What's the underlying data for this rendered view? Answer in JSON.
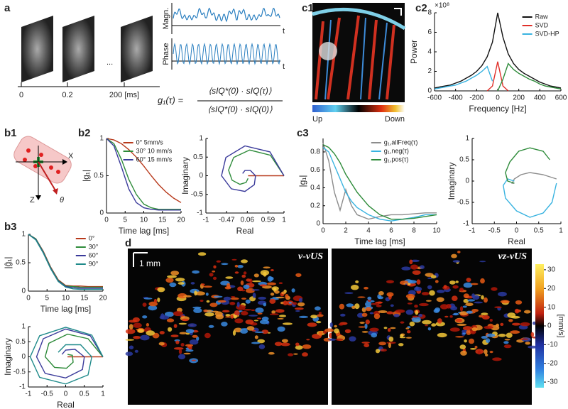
{
  "panels": {
    "a": {
      "label": "a",
      "magn": "Magn.",
      "phase": "Phase",
      "t1": "t",
      "t2": "t",
      "ellipsis": "...",
      "time_ticks": [
        "0",
        "0.2",
        "200 [ms]"
      ],
      "formula": {
        "lhs": "g₁(τ) =",
        "numerator": "⟨sIQ*(0) · sIQ(τ)⟩",
        "denominator": "⟨sIQ*(0) · sIQ(0)⟩"
      }
    },
    "c1": {
      "label": "c1",
      "low": "Up",
      "high": "Down"
    },
    "c2": {
      "label": "c2"
    },
    "b1": {
      "label": "b1",
      "x_axis": "X",
      "z_axis": "Z",
      "angle": "θ"
    },
    "b2": {
      "label": "b2"
    },
    "c3": {
      "label": "c3"
    },
    "b3": {
      "label": "b3"
    },
    "d": {
      "label": "d",
      "scale": "1 mm",
      "left_title": "v-vUS",
      "right_title": "vz-vUS",
      "colorbar": {
        "label": "[mm/s]",
        "lim": [
          -33,
          33
        ],
        "ticks": [
          30,
          20,
          10,
          0,
          -10,
          -20,
          -30
        ]
      }
    }
  },
  "chart_data": [
    {
      "type": "line",
      "xlabel": "Frequency [Hz]",
      "ylabel": "Power",
      "y_multiplier": "×10⁸",
      "xlim": [
        -600,
        600
      ],
      "ylim": [
        0,
        8
      ],
      "xticks": [
        -600,
        -400,
        -200,
        0,
        200,
        400,
        600
      ],
      "yticks": [
        0,
        2,
        4,
        6,
        8
      ],
      "legend": "upper right",
      "x": [
        -600,
        -550,
        -500,
        -450,
        -400,
        -350,
        -300,
        -250,
        -200,
        -150,
        -100,
        -50,
        0,
        50,
        100,
        150,
        200,
        250,
        300,
        350,
        400,
        450,
        500,
        550,
        600
      ],
      "series": [
        {
          "name": "Raw",
          "color": "#111111",
          "values": [
            0.3,
            0.4,
            0.5,
            0.6,
            0.8,
            1.0,
            1.3,
            1.6,
            2.0,
            2.6,
            3.5,
            5.0,
            8.0,
            5.5,
            3.8,
            2.8,
            2.2,
            1.8,
            1.5,
            1.2,
            0.9,
            0.7,
            0.5,
            0.4,
            0.3
          ]
        },
        {
          "name": "SVD",
          "color": "#e0302a",
          "x": [
            -100,
            -50,
            0,
            50,
            100
          ],
          "values": [
            0,
            0.5,
            3,
            0.5,
            0
          ]
        },
        {
          "name": "SVD-HP",
          "color": "#39b3e0",
          "colors": [
            "#39b3e0",
            "#2e8b3a"
          ],
          "values": [
            0.2,
            0.3,
            0.4,
            0.5,
            0.6,
            0.8,
            1.0,
            1.3,
            1.6,
            2.0,
            2.5,
            1.0,
            0,
            1.2,
            2.8,
            2.2,
            1.8,
            1.5,
            1.2,
            1.0,
            0.7,
            0.5,
            0.4,
            0.3,
            0.2
          ]
        }
      ]
    },
    {
      "type": "line",
      "xlabel": "Time lag [ms]",
      "ylabel": "|g₁|",
      "xlim": [
        0,
        20
      ],
      "ylim": [
        0,
        1
      ],
      "xticks": [
        0,
        5,
        10,
        15,
        20
      ],
      "yticks": [
        0,
        0.5,
        1
      ],
      "legend": "upper right",
      "x": [
        0,
        2,
        4,
        6,
        8,
        10,
        12,
        14,
        16,
        18,
        20
      ],
      "series": [
        {
          "name": "0° 5mm/s",
          "color": "#b83a1c",
          "values": [
            1,
            0.98,
            0.93,
            0.85,
            0.75,
            0.63,
            0.5,
            0.38,
            0.28,
            0.2,
            0.14
          ]
        },
        {
          "name": "30° 10 mm/s",
          "color": "#2e8b3a",
          "values": [
            1,
            0.93,
            0.72,
            0.45,
            0.25,
            0.12,
            0.07,
            0.05,
            0.05,
            0.05,
            0.05
          ]
        },
        {
          "name": "60° 15 mm/s",
          "color": "#3a3a9a",
          "values": [
            1,
            0.9,
            0.62,
            0.32,
            0.14,
            0.07,
            0.05,
            0.04,
            0.04,
            0.04,
            0.04
          ]
        }
      ]
    },
    {
      "type": "line",
      "xlabel": "Real",
      "ylabel": "Imaginary",
      "xlim": [
        -1,
        1
      ],
      "ylim": [
        -1,
        1
      ],
      "xticks": [
        -1,
        -0.47,
        0.06,
        0.59,
        1
      ],
      "yticks": [
        -1,
        -0.5,
        0,
        0.5,
        1
      ],
      "series": [
        {
          "color": "#b83a1c",
          "x": [
            1,
            0.8,
            0.5,
            0.3,
            0.15,
            0.08
          ],
          "values": [
            0,
            0,
            0,
            0,
            0,
            0
          ]
        },
        {
          "color": "#2e8b3a",
          "x": [
            1,
            0.65,
            0.12,
            -0.29,
            -0.42,
            -0.33,
            -0.13,
            0.03,
            0.08
          ],
          "values": [
            0,
            0.55,
            0.69,
            0.49,
            0.15,
            -0.12,
            -0.23,
            -0.18,
            -0.07
          ]
        },
        {
          "color": "#3a3a9a",
          "x": [
            1,
            0.64,
            0,
            -0.49,
            -0.6,
            -0.35,
            0,
            0.24,
            0.27,
            0.14,
            0,
            -0.06
          ],
          "values": [
            0,
            0.64,
            0.8,
            0.49,
            0,
            -0.35,
            -0.42,
            -0.24,
            0,
            0.14,
            0.14,
            0.06
          ]
        }
      ]
    },
    {
      "type": "line",
      "xlabel": "Time lag [ms]",
      "ylabel": "|g₁|",
      "xlim": [
        0,
        10
      ],
      "ylim": [
        0,
        0.95
      ],
      "xticks": [
        0,
        2,
        4,
        6,
        8,
        10
      ],
      "yticks": [
        0,
        0.2,
        0.4,
        0.6,
        0.8
      ],
      "legend": "upper right",
      "x": [
        0,
        0.5,
        1,
        1.5,
        2,
        2.5,
        3,
        4,
        5,
        6,
        7,
        8,
        9,
        10
      ],
      "series": [
        {
          "name": "g₁,allFreq(τ)",
          "color": "#8c8c8c",
          "values": [
            0.9,
            0.7,
            0.35,
            0.15,
            0.38,
            0.2,
            0.1,
            0.05,
            0.08,
            0.1,
            0.1,
            0.11,
            0.12,
            0.12
          ]
        },
        {
          "name": "g₁,neg(τ)",
          "color": "#39b3e0",
          "values": [
            0.85,
            0.8,
            0.65,
            0.5,
            0.35,
            0.25,
            0.18,
            0.1,
            0.05,
            0.03,
            0.05,
            0.07,
            0.1,
            0.1
          ]
        },
        {
          "name": "g₁,pos(τ)",
          "color": "#2e8b3a",
          "values": [
            0.88,
            0.85,
            0.78,
            0.68,
            0.55,
            0.45,
            0.35,
            0.2,
            0.1,
            0.05,
            0.05,
            0.06,
            0.08,
            0.1
          ]
        }
      ]
    },
    {
      "type": "line",
      "xlabel": "Real",
      "ylabel": "Imaginary",
      "xlim": [
        -1,
        1
      ],
      "ylim": [
        -1,
        1
      ],
      "xticks": [
        -1,
        -0.5,
        0,
        0.5,
        1
      ],
      "yticks": [
        -1,
        -0.5,
        0,
        0.5,
        1
      ],
      "series": [
        {
          "color": "#8c8c8c",
          "x": [
            0.9,
            0.6,
            0.3,
            0.1,
            -0.05,
            -0.1,
            -0.05
          ],
          "values": [
            0.05,
            0.15,
            0.2,
            0.15,
            0.05,
            -0.05,
            -0.05
          ]
        },
        {
          "color": "#39b3e0",
          "x": [
            0.9,
            0.8,
            0.6,
            0.3,
            0.0,
            -0.25,
            -0.3,
            -0.2,
            -0.05
          ],
          "values": [
            -0.05,
            -0.5,
            -0.75,
            -0.85,
            -0.7,
            -0.4,
            -0.1,
            0.05,
            0
          ]
        },
        {
          "color": "#2e8b3a",
          "x": [
            0.75,
            0.6,
            0.3,
            0.05,
            -0.15,
            -0.25,
            -0.2,
            -0.05
          ],
          "values": [
            0.5,
            0.7,
            0.78,
            0.7,
            0.45,
            0.2,
            0.0,
            -0.05
          ]
        }
      ]
    },
    {
      "type": "line",
      "xlabel": "Time lag [ms]",
      "ylabel": "|ĝ₁|",
      "xlim": [
        0,
        20
      ],
      "ylim": [
        0,
        1
      ],
      "xticks": [
        0,
        5,
        10,
        15,
        20
      ],
      "yticks": [
        0,
        0.5,
        1
      ],
      "legend": "upper right",
      "x": [
        0,
        2,
        4,
        6,
        8,
        10,
        12,
        14,
        16,
        18,
        20
      ],
      "series": [
        {
          "name": "0°",
          "color": "#b83a1c",
          "values": [
            1,
            0.92,
            0.7,
            0.42,
            0.2,
            0.1,
            0.09,
            0.09,
            0.08,
            0.08,
            0.08
          ]
        },
        {
          "name": "30°",
          "color": "#2e8b3a",
          "values": [
            1,
            0.92,
            0.69,
            0.41,
            0.19,
            0.09,
            0.08,
            0.07,
            0.07,
            0.07,
            0.07
          ]
        },
        {
          "name": "60°",
          "color": "#3a3a9a",
          "values": [
            1,
            0.91,
            0.68,
            0.4,
            0.18,
            0.08,
            0.06,
            0.05,
            0.05,
            0.05,
            0.05
          ]
        },
        {
          "name": "90°",
          "color": "#1f8a8a",
          "values": [
            1,
            0.9,
            0.67,
            0.39,
            0.17,
            0.07,
            0.04,
            0.03,
            0.03,
            0.03,
            0.03
          ]
        }
      ]
    },
    {
      "type": "line",
      "xlabel": "Real",
      "ylabel": "Imaginary",
      "xlim": [
        -1,
        1
      ],
      "ylim": [
        -1,
        1
      ],
      "xticks": [
        -1,
        -0.5,
        0,
        0.5,
        1
      ],
      "yticks": [
        -1,
        -0.5,
        0,
        0.5,
        1
      ],
      "series": [
        {
          "color": "#b83a1c",
          "x": [
            1,
            0.7,
            0.4,
            0.2,
            0.05
          ],
          "values": [
            0,
            0,
            0,
            0,
            0
          ]
        },
        {
          "color": "#2e8b3a",
          "x": [
            1,
            0.6,
            0.05,
            -0.45,
            -0.55,
            -0.3,
            0.02,
            0.2,
            0.18,
            0.05
          ],
          "values": [
            0,
            0.6,
            0.75,
            0.45,
            0,
            -0.35,
            -0.38,
            -0.18,
            0.05,
            0.08
          ]
        },
        {
          "color": "#3a3a9a",
          "x": [
            1,
            0.66,
            0,
            -0.6,
            -0.78,
            -0.55,
            0,
            0.45,
            0.5,
            0.25,
            0,
            -0.1
          ],
          "values": [
            0,
            0.7,
            0.92,
            0.6,
            0,
            -0.55,
            -0.7,
            -0.42,
            0,
            0.25,
            0.22,
            0.08
          ]
        },
        {
          "color": "#1f8a8a",
          "x": [
            1,
            0.7,
            0,
            -0.7,
            -0.95,
            -0.7,
            0,
            0.6,
            0.7,
            0.4,
            0,
            -0.2
          ],
          "values": [
            0,
            0.72,
            0.98,
            0.7,
            0,
            -0.68,
            -0.9,
            -0.6,
            0,
            0.4,
            0.4,
            0.15
          ]
        }
      ]
    }
  ]
}
